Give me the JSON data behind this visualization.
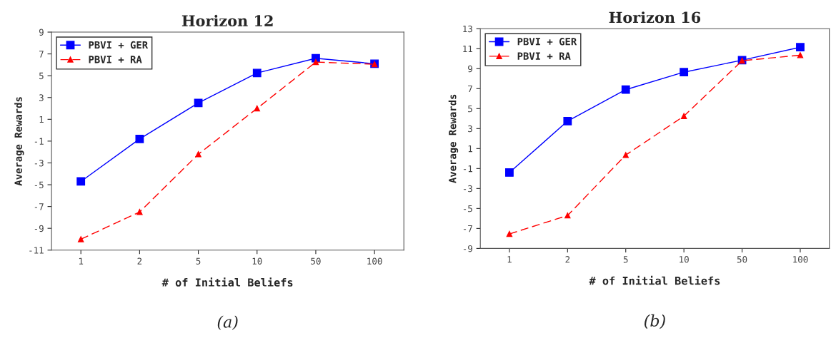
{
  "chart_data": [
    {
      "type": "line",
      "title": "Horizon 12",
      "xlabel": "# of Initial Beliefs",
      "ylabel": "Average Rewards",
      "categories": [
        "1",
        "2",
        "5",
        "10",
        "50",
        "100"
      ],
      "series": [
        {
          "name": "PBVI + GER",
          "color": "#0000ff",
          "marker": "square",
          "line_style": "solid",
          "values": [
            -4.7,
            -0.8,
            2.5,
            5.25,
            6.6,
            6.1
          ]
        },
        {
          "name": "PBVI + RA",
          "color": "#ff0000",
          "marker": "triangle",
          "line_style": "dashed",
          "values": [
            -10,
            -7.5,
            -2.2,
            2.0,
            6.25,
            6.05
          ]
        }
      ],
      "ylim": [
        -11,
        9
      ],
      "yticks": [
        -11,
        -9,
        -7,
        -5,
        -3,
        -1,
        1,
        3,
        5,
        7,
        9
      ],
      "grid": false,
      "legend": "top left",
      "annotations": [
        "(a)"
      ]
    },
    {
      "type": "line",
      "title": "Horizon 16",
      "xlabel": "# of Initial Beliefs",
      "ylabel": "Average Rewards",
      "categories": [
        "1",
        "2",
        "5",
        "10",
        "50",
        "100"
      ],
      "series": [
        {
          "name": "PBVI + GER",
          "color": "#0000ff",
          "marker": "square",
          "line_style": "solid",
          "values": [
            -1.4,
            3.75,
            6.9,
            8.65,
            9.85,
            11.15
          ]
        },
        {
          "name": "PBVI + RA",
          "color": "#ff0000",
          "marker": "triangle",
          "line_style": "dashed",
          "values": [
            -7.55,
            -5.7,
            0.35,
            4.25,
            9.8,
            10.35
          ]
        }
      ],
      "ylim": [
        -9,
        13
      ],
      "yticks": [
        -9,
        -7,
        -5,
        -3,
        -1,
        1,
        3,
        5,
        7,
        9,
        11,
        13
      ],
      "grid": false,
      "legend": "top left",
      "annotations": [
        "(b)"
      ]
    }
  ]
}
